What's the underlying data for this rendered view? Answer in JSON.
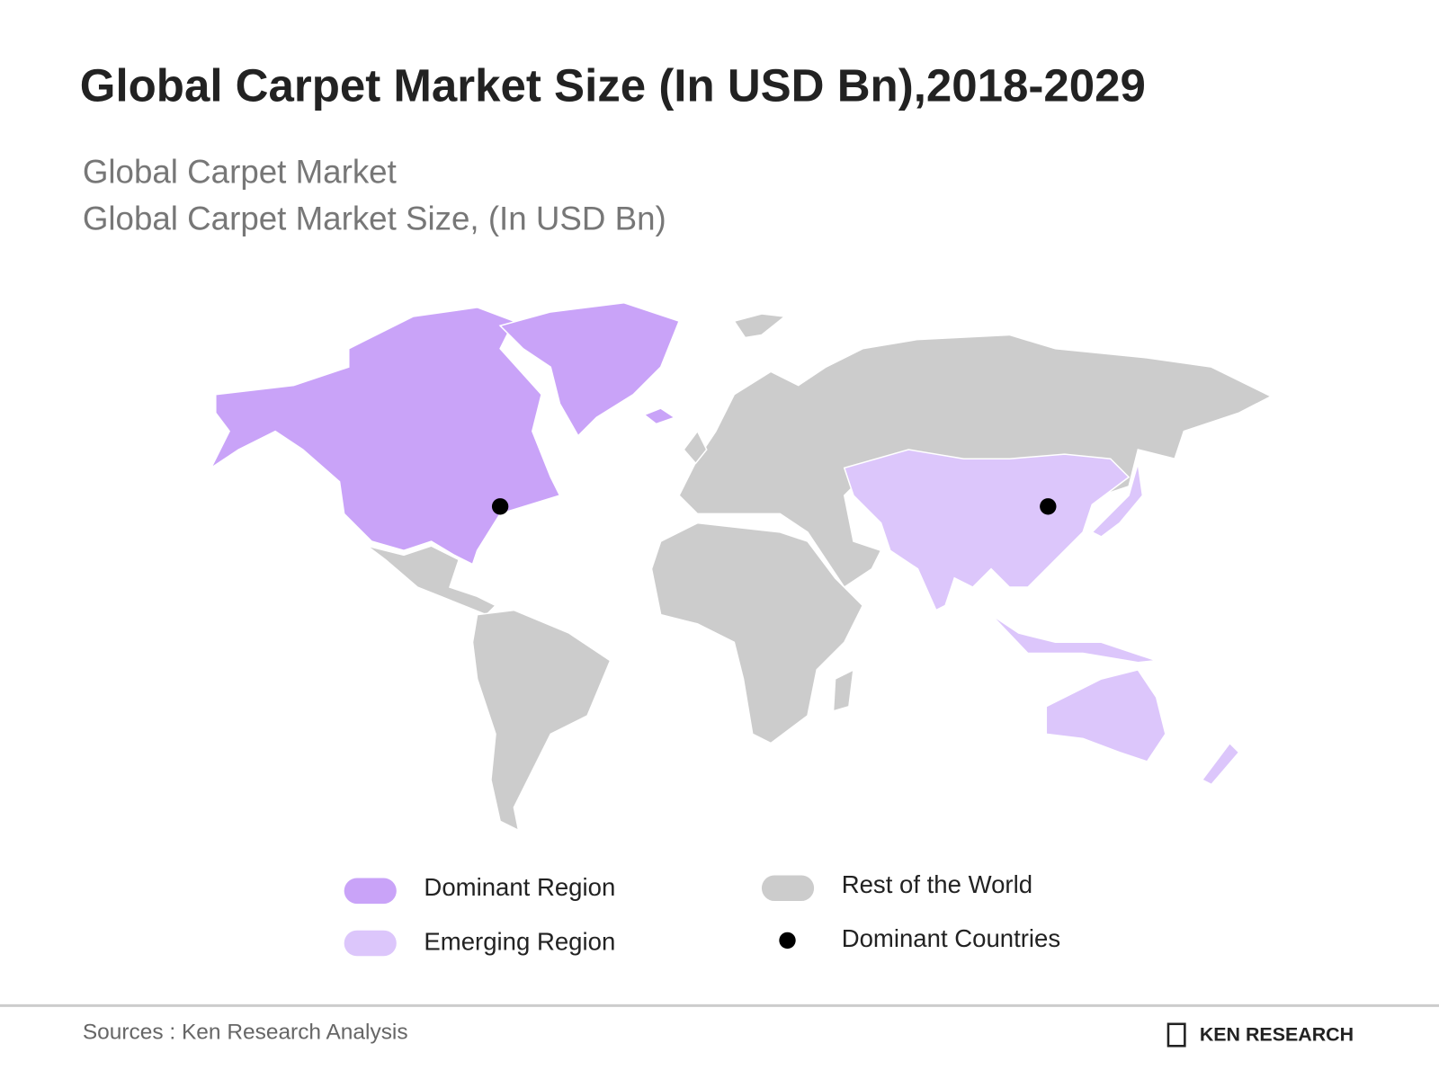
{
  "title": "Global Carpet Market Size (In USD Bn),2018-2029",
  "subtitle_lines": [
    "Global Carpet Market",
    "Global Carpet Market Size, (In USD Bn)"
  ],
  "legend": [
    {
      "label": "Dominant Region",
      "color": "#c9a3f8"
    },
    {
      "label": "Emerging Region",
      "color": "#dcc6fb"
    },
    {
      "label": "Rest of the World",
      "color": "#cccccc"
    },
    {
      "label": "Dominant Countries",
      "color": "#000000"
    }
  ],
  "footer": {
    "source": "Sources : Ken Research Analysis",
    "logo": "KEN RESEARCH"
  }
}
